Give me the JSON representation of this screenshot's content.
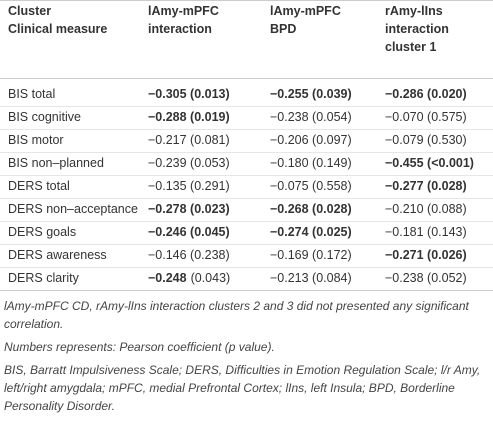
{
  "table": {
    "header": {
      "label": [
        "Cluster",
        "Clinical measure"
      ],
      "columns": [
        [
          "lAmy-mPFC",
          "interaction"
        ],
        [
          "lAmy-mPFC",
          "BPD"
        ],
        [
          "rAmy-lIns",
          "interaction",
          "cluster 1"
        ]
      ]
    },
    "rows": [
      {
        "label": "BIS total",
        "cells": [
          [
            {
              "text": "−0.305 (0.013)",
              "bold": true
            }
          ],
          [
            {
              "text": "−0.255 (0.039)",
              "bold": true
            }
          ],
          [
            {
              "text": "−0.286 (0.020)",
              "bold": true
            }
          ]
        ]
      },
      {
        "label": "BIS cognitive",
        "cells": [
          [
            {
              "text": "−0.288 (0.019)",
              "bold": true
            }
          ],
          [
            {
              "text": "−0.238 (0.054)",
              "bold": false
            }
          ],
          [
            {
              "text": "−0.070 (0.575)",
              "bold": false
            }
          ]
        ]
      },
      {
        "label": "BIS motor",
        "cells": [
          [
            {
              "text": "−0.217 (0.081)",
              "bold": false
            }
          ],
          [
            {
              "text": "−0.206 (0.097)",
              "bold": false
            }
          ],
          [
            {
              "text": "−0.079 (0.530)",
              "bold": false
            }
          ]
        ]
      },
      {
        "label": "BIS non–planned",
        "cells": [
          [
            {
              "text": "−0.239 (0.053)",
              "bold": false
            }
          ],
          [
            {
              "text": "−0.180 (0.149)",
              "bold": false
            }
          ],
          [
            {
              "text": "−0.455 (<0.001)",
              "bold": true
            }
          ]
        ]
      },
      {
        "label": "DERS total",
        "cells": [
          [
            {
              "text": "−0.135 (0.291)",
              "bold": false
            }
          ],
          [
            {
              "text": "−0.075 (0.558)",
              "bold": false
            }
          ],
          [
            {
              "text": "−0.277 (0.028)",
              "bold": true
            }
          ]
        ]
      },
      {
        "label": "DERS non–acceptance",
        "cells": [
          [
            {
              "text": "−0.278 (0.023)",
              "bold": true
            }
          ],
          [
            {
              "text": "−0.268 (0.028)",
              "bold": true
            }
          ],
          [
            {
              "text": "−0.210 (0.088)",
              "bold": false
            }
          ]
        ]
      },
      {
        "label": "DERS goals",
        "cells": [
          [
            {
              "text": "−0.246 (0.045)",
              "bold": true
            }
          ],
          [
            {
              "text": "−0.274 (0.025)",
              "bold": true
            }
          ],
          [
            {
              "text": "−0.181 (0.143)",
              "bold": false
            }
          ]
        ]
      },
      {
        "label": "DERS awareness",
        "cells": [
          [
            {
              "text": "−0.146 (0.238)",
              "bold": false
            }
          ],
          [
            {
              "text": "−0.169 (0.172)",
              "bold": false
            }
          ],
          [
            {
              "text": "−0.271 (0.026)",
              "bold": true
            }
          ]
        ]
      },
      {
        "label": "DERS clarity",
        "cells": [
          [
            {
              "text": "−0.248",
              "bold": true
            },
            {
              "text": "(0.043)",
              "bold": false
            }
          ],
          [
            {
              "text": "−0.213 (0.084)",
              "bold": false
            }
          ],
          [
            {
              "text": "−0.238 (0.052)",
              "bold": false
            }
          ]
        ]
      }
    ],
    "footnotes": [
      "lAmy-mPFC CD, rAmy-lIns interaction clusters 2 and 3 did not presented any significant correlation.",
      "Numbers represents: Pearson coefficient (p value).",
      "BIS, Barratt Impulsiveness Scale; DERS, Difficulties in Emotion Regulation Scale; l/r Amy, left/right amygdala; mPFC, medial Prefrontal Cortex; lIns, left Insula; BPD, Borderline Personality Disorder."
    ]
  }
}
